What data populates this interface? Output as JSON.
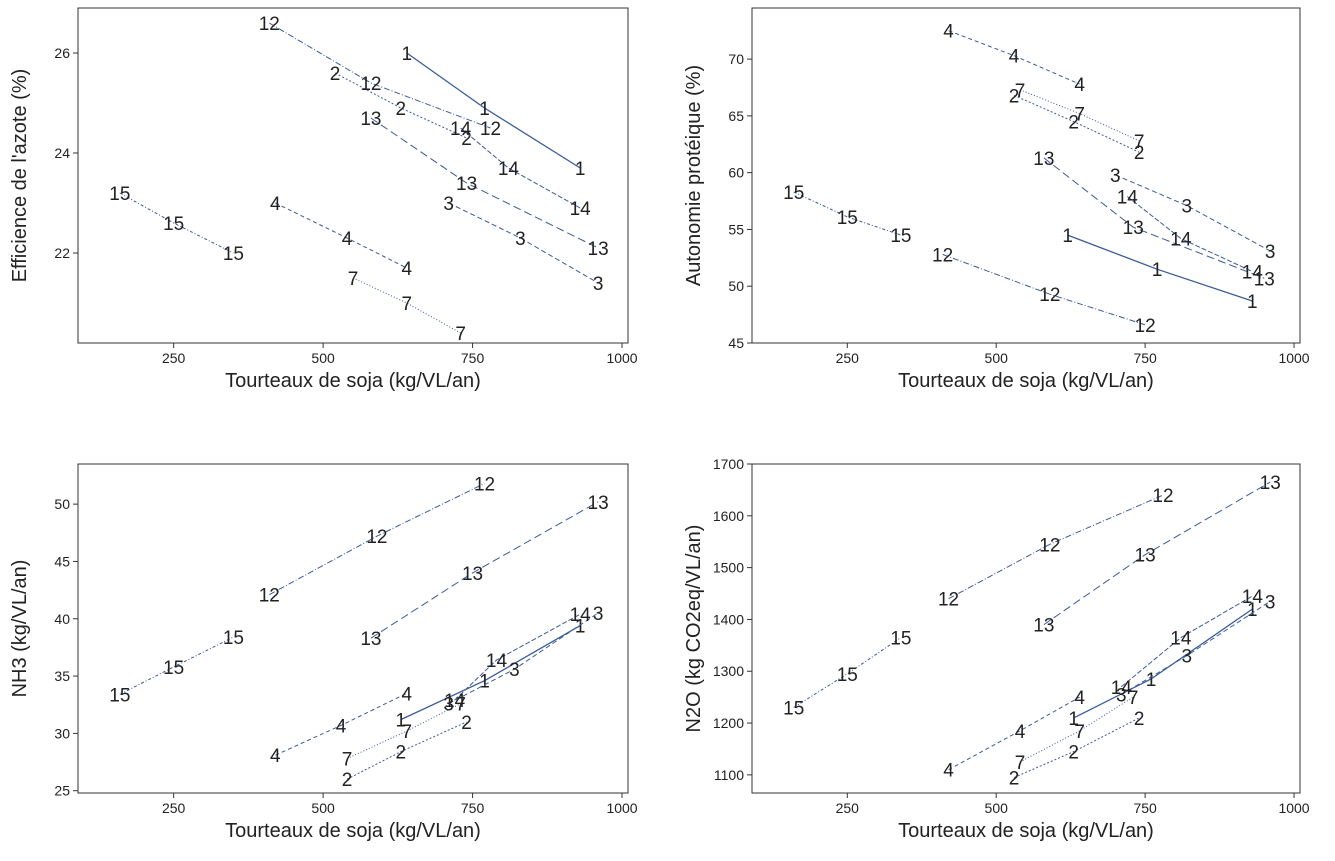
{
  "chart_data": [
    {
      "type": "line",
      "xlabel": "Tourteaux de soja (kg/VL/an)",
      "ylabel": "Efficience de l'azote (%)",
      "xlim": [
        90,
        1010
      ],
      "ylim": [
        20.2,
        26.9
      ],
      "xticks": [
        250,
        500,
        750,
        1000
      ],
      "yticks": [
        22,
        24,
        26
      ],
      "series": [
        {
          "name": "1",
          "x": [
            640,
            770,
            930
          ],
          "y": [
            26.0,
            24.9,
            23.7
          ]
        },
        {
          "name": "2",
          "x": [
            520,
            630,
            740
          ],
          "y": [
            25.6,
            24.9,
            24.3
          ]
        },
        {
          "name": "3",
          "x": [
            710,
            830,
            960
          ],
          "y": [
            23.0,
            22.3,
            21.4
          ]
        },
        {
          "name": "4",
          "x": [
            420,
            540,
            640
          ],
          "y": [
            23.0,
            22.3,
            21.7
          ]
        },
        {
          "name": "7",
          "x": [
            550,
            640,
            730
          ],
          "y": [
            21.5,
            21.0,
            20.4
          ]
        },
        {
          "name": "12",
          "x": [
            410,
            580,
            780
          ],
          "y": [
            26.6,
            25.4,
            24.5
          ]
        },
        {
          "name": "13",
          "x": [
            580,
            740,
            960
          ],
          "y": [
            24.7,
            23.4,
            22.1
          ]
        },
        {
          "name": "14",
          "x": [
            730,
            810,
            930
          ],
          "y": [
            24.5,
            23.7,
            22.9
          ]
        },
        {
          "name": "15",
          "x": [
            160,
            250,
            350
          ],
          "y": [
            23.2,
            22.6,
            22.0
          ]
        }
      ]
    },
    {
      "type": "line",
      "xlabel": "Tourteaux de soja (kg/VL/an)",
      "ylabel": "Autonomie protéique (%)",
      "xlim": [
        90,
        1010
      ],
      "ylim": [
        45,
        74.5
      ],
      "xticks": [
        250,
        500,
        750,
        1000
      ],
      "yticks": [
        45,
        50,
        55,
        60,
        65,
        70
      ],
      "series": [
        {
          "name": "1",
          "x": [
            620,
            770,
            930
          ],
          "y": [
            54.5,
            51.5,
            48.7
          ]
        },
        {
          "name": "2",
          "x": [
            530,
            630,
            740
          ],
          "y": [
            66.8,
            64.5,
            61.8
          ]
        },
        {
          "name": "3",
          "x": [
            700,
            820,
            960
          ],
          "y": [
            59.8,
            57.1,
            53.1
          ]
        },
        {
          "name": "4",
          "x": [
            420,
            530,
            640
          ],
          "y": [
            72.5,
            70.3,
            67.8
          ]
        },
        {
          "name": "7",
          "x": [
            540,
            640,
            740
          ],
          "y": [
            67.3,
            65.2,
            62.8
          ]
        },
        {
          "name": "12",
          "x": [
            410,
            590,
            750
          ],
          "y": [
            52.8,
            49.3,
            46.6
          ]
        },
        {
          "name": "13",
          "x": [
            580,
            730,
            950
          ],
          "y": [
            61.3,
            55.2,
            50.7
          ]
        },
        {
          "name": "14",
          "x": [
            720,
            810,
            930
          ],
          "y": [
            57.9,
            54.2,
            51.3
          ]
        },
        {
          "name": "15",
          "x": [
            160,
            250,
            340
          ],
          "y": [
            58.3,
            56.1,
            54.5
          ]
        }
      ]
    },
    {
      "type": "line",
      "xlabel": "Tourteaux de soja (kg/VL/an)",
      "ylabel": "NH3 (kg/VL/an)",
      "xlim": [
        90,
        1010
      ],
      "ylim": [
        24.8,
        53.5
      ],
      "xticks": [
        250,
        500,
        750,
        1000
      ],
      "yticks": [
        25,
        30,
        35,
        40,
        45,
        50
      ],
      "series": [
        {
          "name": "1",
          "x": [
            630,
            770,
            930
          ],
          "y": [
            31.2,
            34.6,
            39.4
          ]
        },
        {
          "name": "2",
          "x": [
            540,
            630,
            740
          ],
          "y": [
            26.0,
            28.4,
            31.0
          ]
        },
        {
          "name": "3",
          "x": [
            710,
            820,
            960
          ],
          "y": [
            32.6,
            35.6,
            40.5
          ]
        },
        {
          "name": "4",
          "x": [
            420,
            530,
            640
          ],
          "y": [
            28.1,
            30.7,
            33.5
          ]
        },
        {
          "name": "7",
          "x": [
            540,
            640,
            730
          ],
          "y": [
            27.8,
            30.2,
            32.6
          ]
        },
        {
          "name": "12",
          "x": [
            410,
            590,
            770
          ],
          "y": [
            42.1,
            47.2,
            51.8
          ]
        },
        {
          "name": "13",
          "x": [
            580,
            750,
            960
          ],
          "y": [
            38.3,
            44.0,
            50.2
          ]
        },
        {
          "name": "14",
          "x": [
            720,
            790,
            930
          ],
          "y": [
            32.9,
            36.4,
            40.4
          ]
        },
        {
          "name": "15",
          "x": [
            160,
            250,
            350
          ],
          "y": [
            33.4,
            35.8,
            38.4
          ]
        }
      ]
    },
    {
      "type": "line",
      "xlabel": "Tourteaux de soja (kg/VL/an)",
      "ylabel": "N2O (kg CO2eq/VL/an)",
      "xlim": [
        90,
        1010
      ],
      "ylim": [
        1065,
        1700
      ],
      "xticks": [
        250,
        500,
        750,
        1000
      ],
      "yticks": [
        1100,
        1200,
        1300,
        1400,
        1500,
        1600,
        1700
      ],
      "series": [
        {
          "name": "1",
          "x": [
            630,
            760,
            930
          ],
          "y": [
            1210,
            1285,
            1420
          ]
        },
        {
          "name": "2",
          "x": [
            530,
            630,
            740
          ],
          "y": [
            1095,
            1145,
            1210
          ]
        },
        {
          "name": "3",
          "x": [
            710,
            820,
            960
          ],
          "y": [
            1255,
            1330,
            1435
          ]
        },
        {
          "name": "4",
          "x": [
            420,
            540,
            640
          ],
          "y": [
            1110,
            1185,
            1250
          ]
        },
        {
          "name": "7",
          "x": [
            540,
            640,
            730
          ],
          "y": [
            1125,
            1185,
            1250
          ]
        },
        {
          "name": "12",
          "x": [
            420,
            590,
            780
          ],
          "y": [
            1440,
            1545,
            1640
          ]
        },
        {
          "name": "13",
          "x": [
            580,
            750,
            960
          ],
          "y": [
            1390,
            1525,
            1665
          ]
        },
        {
          "name": "14",
          "x": [
            710,
            810,
            930
          ],
          "y": [
            1270,
            1365,
            1445
          ]
        },
        {
          "name": "15",
          "x": [
            160,
            250,
            340
          ],
          "y": [
            1230,
            1295,
            1365
          ]
        }
      ]
    }
  ]
}
